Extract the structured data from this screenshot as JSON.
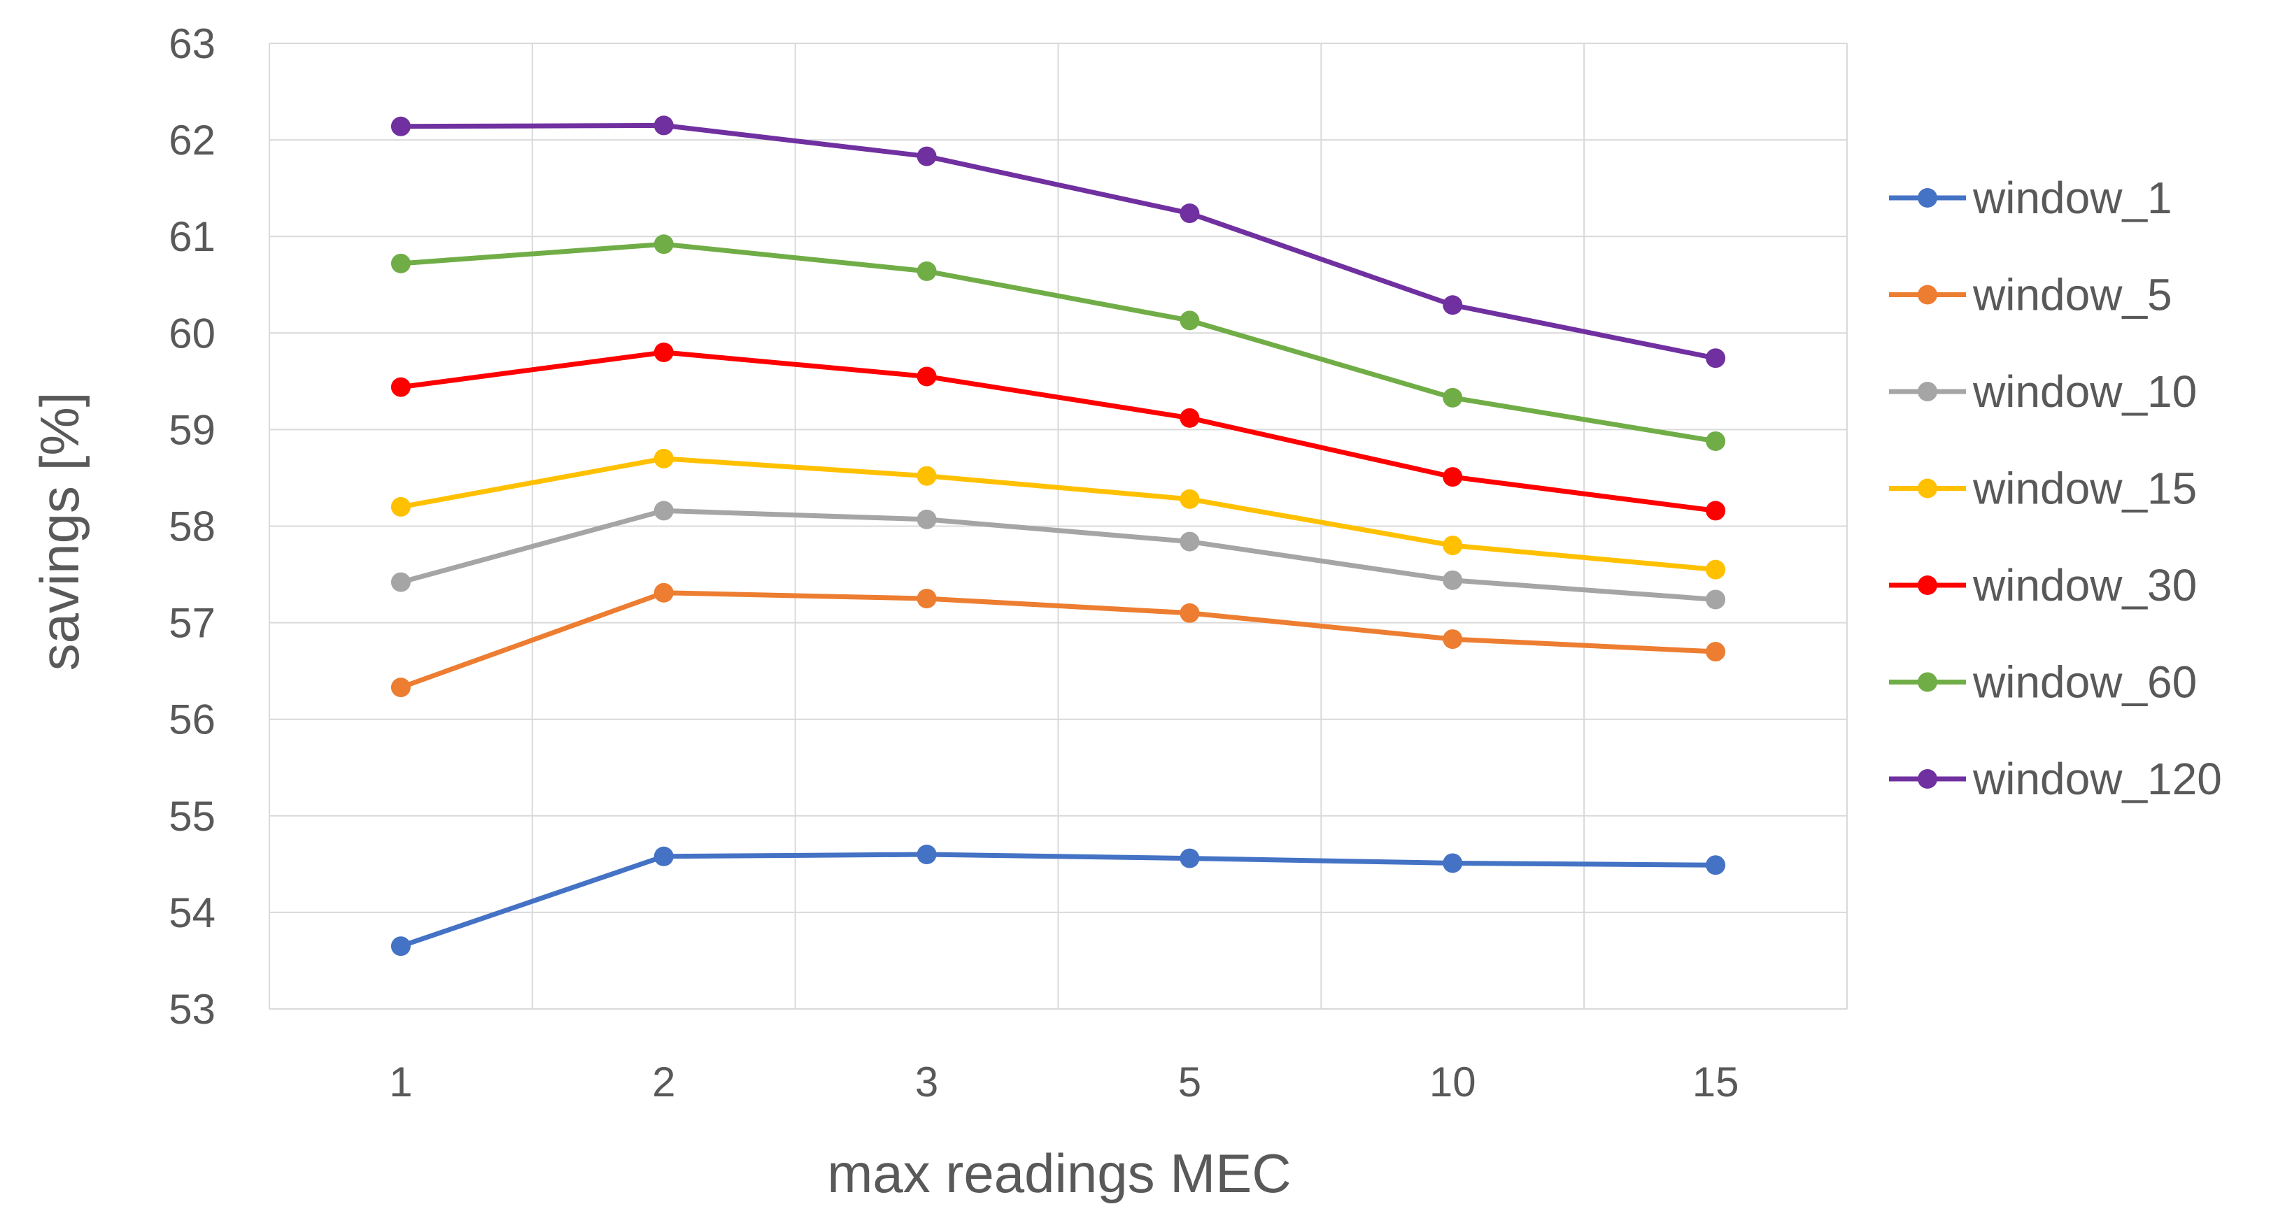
{
  "chart_data": {
    "type": "line",
    "categories": [
      "1",
      "2",
      "3",
      "5",
      "10",
      "15"
    ],
    "xlabel": "max readings MEC",
    "ylabel": "savings [%]",
    "ylim": [
      53,
      63
    ],
    "yticks": [
      "53",
      "54",
      "55",
      "56",
      "57",
      "58",
      "59",
      "60",
      "61",
      "62",
      "63"
    ],
    "grid": true,
    "legend_position": "right",
    "series": [
      {
        "name": "window_1",
        "color": "#4472C4",
        "values": [
          53.65,
          54.58,
          54.6,
          54.56,
          54.51,
          54.49
        ]
      },
      {
        "name": "window_5",
        "color": "#ED7D31",
        "values": [
          56.33,
          57.31,
          57.25,
          57.1,
          56.83,
          56.7
        ]
      },
      {
        "name": "window_10",
        "color": "#A5A5A5",
        "values": [
          57.42,
          58.16,
          58.07,
          57.84,
          57.44,
          57.24
        ]
      },
      {
        "name": "window_15",
        "color": "#FFC000",
        "values": [
          58.2,
          58.7,
          58.52,
          58.28,
          57.8,
          57.55
        ]
      },
      {
        "name": "window_30",
        "color": "#FF0000",
        "values": [
          59.44,
          59.8,
          59.55,
          59.12,
          58.51,
          58.16
        ]
      },
      {
        "name": "window_60",
        "color": "#70AD47",
        "values": [
          60.72,
          60.92,
          60.64,
          60.13,
          59.33,
          58.88
        ]
      },
      {
        "name": "window_120",
        "color": "#7030A0",
        "values": [
          62.14,
          62.15,
          61.83,
          61.24,
          60.29,
          59.74
        ]
      }
    ]
  }
}
